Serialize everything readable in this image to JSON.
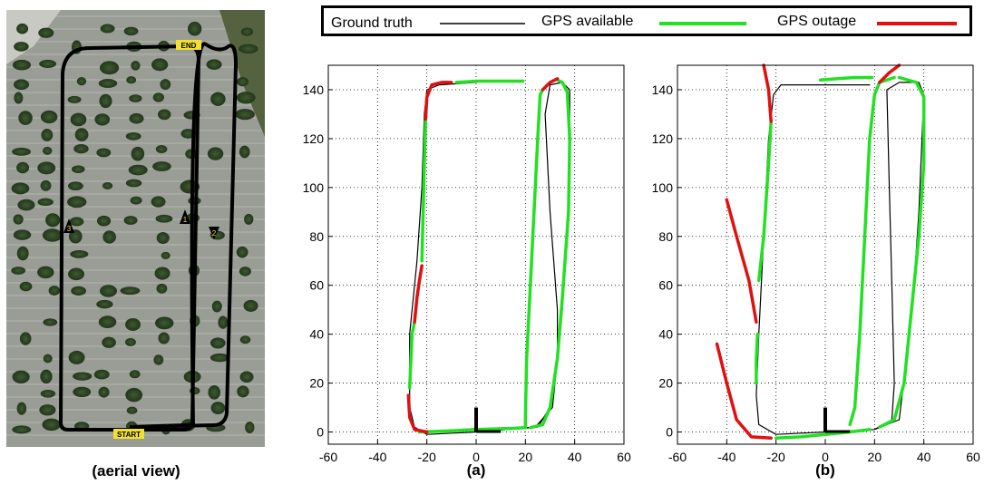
{
  "aerial": {
    "caption": "(aerial view)",
    "labels": {
      "start": "START",
      "end": "END"
    },
    "markers": [
      "1",
      "2",
      "3"
    ],
    "path_color": "#000000",
    "tag_color": "#f2e12a"
  },
  "legend": {
    "position": "top",
    "entries": [
      {
        "label": "Ground truth",
        "color": "#000000"
      },
      {
        "label": "GPS available",
        "color": "#22e022"
      },
      {
        "label": "GPS outage",
        "color": "#e01010"
      }
    ]
  },
  "chart_data": [
    {
      "type": "line",
      "caption": "(a)",
      "xlim": [
        -60,
        60
      ],
      "ylim": [
        -5,
        150
      ],
      "xticks": [
        -60,
        -40,
        -20,
        0,
        20,
        40,
        60
      ],
      "yticks": [
        0,
        20,
        40,
        60,
        80,
        100,
        120,
        140
      ],
      "grid": true,
      "series": [
        {
          "name": "Ground truth",
          "color": "#000000",
          "points": [
            [
              0,
              0
            ],
            [
              -20,
              -1
            ],
            [
              -25,
              2
            ],
            [
              -27,
              10
            ],
            [
              -27,
              40
            ],
            [
              -24,
              70
            ],
            [
              -22,
              100
            ],
            [
              -21,
              130
            ],
            [
              -20,
              140
            ],
            [
              -15,
              142
            ],
            [
              0,
              143
            ]
          ]
        },
        {
          "name": "Ground truth",
          "color": "#000000",
          "points": [
            [
              0,
              0
            ],
            [
              24,
              2
            ],
            [
              31,
              10
            ],
            [
              33,
              30
            ],
            [
              33,
              50
            ],
            [
              30,
              90
            ],
            [
              28,
              130
            ],
            [
              30,
              142
            ],
            [
              35,
              143
            ],
            [
              38,
              140
            ],
            [
              38,
              130
            ],
            [
              37,
              80
            ],
            [
              35,
              50
            ],
            [
              33,
              30
            ],
            [
              30,
              10
            ],
            [
              25,
              2
            ],
            [
              0,
              0
            ]
          ]
        },
        {
          "name": "GPS available",
          "color": "#22e022",
          "points": [
            [
              -23,
              0
            ],
            [
              -10,
              0.5
            ],
            [
              0,
              1
            ],
            [
              15,
              1.5
            ],
            [
              20,
              1.8
            ]
          ]
        },
        {
          "name": "GPS available",
          "color": "#22e022",
          "points": [
            [
              20,
              1.8
            ],
            [
              20,
              5
            ],
            [
              20.5,
              30
            ],
            [
              23,
              80
            ],
            [
              25,
              120
            ],
            [
              26,
              138
            ],
            [
              27,
              140
            ]
          ]
        },
        {
          "name": "GPS available",
          "color": "#22e022",
          "points": [
            [
              -27,
              18
            ],
            [
              -26,
              40
            ],
            [
              -25,
              45
            ]
          ]
        },
        {
          "name": "GPS available",
          "color": "#22e022",
          "points": [
            [
              -22,
              70
            ],
            [
              -21.5,
              90
            ],
            [
              -21,
              110
            ],
            [
              -20.5,
              128
            ]
          ]
        },
        {
          "name": "GPS available",
          "color": "#22e022",
          "points": [
            [
              -8,
              143
            ],
            [
              0,
              143.5
            ],
            [
              10,
              143.5
            ],
            [
              19,
              143.5
            ]
          ]
        },
        {
          "name": "GPS available",
          "color": "#22e022",
          "points": [
            [
              33,
              144
            ],
            [
              35,
              143
            ],
            [
              37,
              139
            ],
            [
              38,
              120
            ],
            [
              37.5,
              90
            ],
            [
              35,
              55
            ],
            [
              33,
              30
            ],
            [
              30,
              10
            ],
            [
              27,
              3
            ],
            [
              22,
              1.8
            ]
          ]
        },
        {
          "name": "GPS outage",
          "color": "#e01010",
          "points": [
            [
              -20,
              0
            ],
            [
              -25,
              1
            ],
            [
              -27,
              6
            ],
            [
              -27.5,
              15
            ]
          ]
        },
        {
          "name": "GPS outage",
          "color": "#e01010",
          "points": [
            [
              -25,
              45
            ],
            [
              -24,
              55
            ],
            [
              -23,
              62
            ],
            [
              -22,
              68
            ]
          ]
        },
        {
          "name": "GPS outage",
          "color": "#e01010",
          "points": [
            [
              -20.5,
              128
            ],
            [
              -20,
              137
            ],
            [
              -18,
              142
            ],
            [
              -14,
              143
            ],
            [
              -10,
              143
            ]
          ]
        },
        {
          "name": "GPS outage",
          "color": "#e01010",
          "points": [
            [
              27,
              140
            ],
            [
              30,
              143
            ],
            [
              33,
              144.5
            ]
          ]
        }
      ]
    },
    {
      "type": "line",
      "caption": "(b)",
      "xlim": [
        -60,
        60
      ],
      "ylim": [
        -5,
        150
      ],
      "xticks": [
        -60,
        -40,
        -20,
        0,
        20,
        40,
        60
      ],
      "yticks": [
        0,
        20,
        40,
        60,
        80,
        100,
        120,
        140
      ],
      "grid": true,
      "series": [
        {
          "name": "Ground truth",
          "color": "#000000",
          "points": [
            [
              0,
              0
            ],
            [
              -20,
              -1
            ],
            [
              -27,
              3
            ],
            [
              -28,
              15
            ],
            [
              -27,
              40
            ],
            [
              -25,
              80
            ],
            [
              -23,
              120
            ],
            [
              -21,
              138
            ],
            [
              -18,
              142
            ],
            [
              0,
              142
            ],
            [
              18,
              142
            ]
          ]
        },
        {
          "name": "Ground truth",
          "color": "#000000",
          "points": [
            [
              0,
              0
            ],
            [
              20,
              1
            ],
            [
              27,
              5
            ],
            [
              28,
              20
            ],
            [
              27,
              60
            ],
            [
              26,
              100
            ],
            [
              25,
              140
            ],
            [
              30,
              143
            ],
            [
              38,
              143
            ],
            [
              40,
              138
            ],
            [
              38,
              90
            ],
            [
              36,
              60
            ],
            [
              33,
              30
            ],
            [
              30,
              5
            ],
            [
              20,
              1
            ],
            [
              0,
              0
            ]
          ]
        },
        {
          "name": "GPS available",
          "color": "#22e022",
          "points": [
            [
              -20,
              -2.5
            ],
            [
              -10,
              -2
            ],
            [
              0,
              -1
            ],
            [
              10,
              0
            ],
            [
              18,
              1
            ]
          ]
        },
        {
          "name": "GPS available",
          "color": "#22e022",
          "points": [
            [
              10,
              3
            ],
            [
              12,
              10
            ],
            [
              14,
              40
            ],
            [
              16,
              80
            ],
            [
              18,
              120
            ],
            [
              20,
              138
            ],
            [
              22,
              143
            ],
            [
              28,
              145
            ]
          ]
        },
        {
          "name": "GPS available",
          "color": "#22e022",
          "points": [
            [
              -28,
              20
            ],
            [
              -28,
              30
            ],
            [
              -27.5,
              40
            ]
          ]
        },
        {
          "name": "GPS available",
          "color": "#22e022",
          "points": [
            [
              -27,
              62
            ],
            [
              -25,
              80
            ],
            [
              -23,
              110
            ],
            [
              -22,
              127
            ]
          ]
        },
        {
          "name": "GPS available",
          "color": "#22e022",
          "points": [
            [
              -2,
              144
            ],
            [
              5,
              144.5
            ],
            [
              12,
              145
            ],
            [
              19,
              145
            ]
          ]
        },
        {
          "name": "GPS available",
          "color": "#22e022",
          "points": [
            [
              30,
              145
            ],
            [
              37,
              143
            ],
            [
              40,
              137
            ],
            [
              40,
              110
            ],
            [
              38,
              80
            ],
            [
              35,
              50
            ],
            [
              32,
              20
            ],
            [
              28,
              5
            ],
            [
              22,
              2
            ]
          ]
        },
        {
          "name": "GPS outage",
          "color": "#e01010",
          "points": [
            [
              -44,
              36
            ],
            [
              -40,
              20
            ],
            [
              -36,
              5
            ],
            [
              -30,
              -2
            ],
            [
              -22,
              -2.5
            ]
          ]
        },
        {
          "name": "GPS outage",
          "color": "#e01010",
          "points": [
            [
              -40,
              95
            ],
            [
              -36,
              80
            ],
            [
              -31,
              62
            ],
            [
              -28,
              45
            ]
          ]
        },
        {
          "name": "GPS outage",
          "color": "#e01010",
          "points": [
            [
              -22,
              127
            ],
            [
              -23,
              140
            ],
            [
              -25,
              150
            ]
          ]
        },
        {
          "name": "GPS outage",
          "color": "#e01010",
          "points": [
            [
              22,
              143
            ],
            [
              26,
              147
            ],
            [
              30,
              150
            ]
          ]
        }
      ]
    }
  ]
}
